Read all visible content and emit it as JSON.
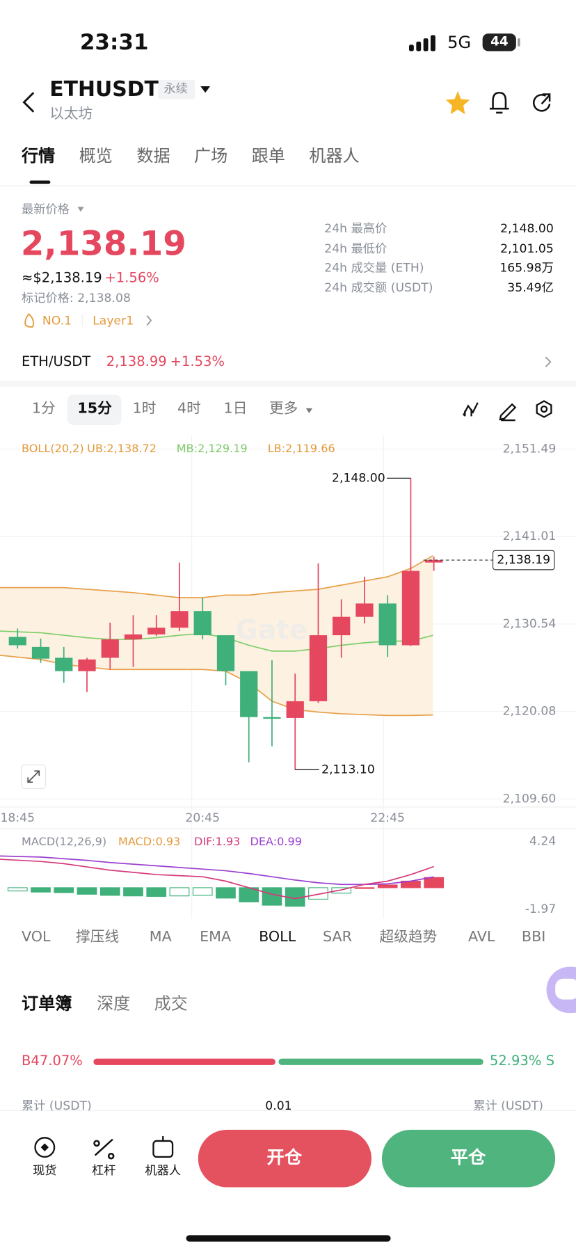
{
  "status": {
    "time": "23:31",
    "network": "5G",
    "battery": "44"
  },
  "header": {
    "symbol": "ETHUSDT",
    "tag": "永续",
    "subtitle": "以太坊"
  },
  "tabs": [
    "行情",
    "概览",
    "数据",
    "广场",
    "跟单",
    "机器人"
  ],
  "price": {
    "label": "最新价格",
    "last": "2,138.19",
    "usd": "≈$2,138.19",
    "change": "+1.56%",
    "mark": "标记价格: 2,138.08",
    "tags": [
      "NO.1",
      "Layer1"
    ]
  },
  "stats": [
    [
      "24h 最高价",
      "2,148.00"
    ],
    [
      "24h 最低价",
      "2,101.05"
    ],
    [
      "24h 成交量 (ETH)",
      "165.98万"
    ],
    [
      "24h 成交额 (USDT)",
      "35.49亿"
    ]
  ],
  "spot": {
    "pair": "ETH/USDT",
    "price": "2,138.99",
    "change": "+1.53%"
  },
  "intervals": [
    "1分",
    "15分",
    "1时",
    "4时",
    "1日",
    "更多"
  ],
  "kline": {
    "type": "candlestick",
    "indicator": "BOLL(20,2)",
    "ub": "UB:2,138.72",
    "mb": "MB:2,129.19",
    "lb": "LB:2,119.66",
    "watermark": "Gate",
    "ylim": [
      2109.6,
      2151.49
    ],
    "yticks": [
      {
        "value": 2151.49,
        "label": "2,151.49"
      },
      {
        "value": 2141.01,
        "label": "2,141.01"
      },
      {
        "value": 2130.54,
        "label": "2,130.54"
      },
      {
        "value": 2120.08,
        "label": "2,120.08"
      },
      {
        "value": 2109.6,
        "label": "2,109.60"
      }
    ],
    "time_labels": [
      "18:45",
      "20:45",
      "22:45"
    ],
    "high_label": "2,148.00",
    "low_label": "2,113.10",
    "last_label": "2,138.19",
    "last": 2138.19,
    "candles": [
      {
        "open": 2129.0,
        "high": 2130.0,
        "low": 2127.6,
        "close": 2128.0
      },
      {
        "open": 2127.8,
        "high": 2128.8,
        "low": 2125.9,
        "close": 2126.4
      },
      {
        "open": 2126.5,
        "high": 2127.8,
        "low": 2123.5,
        "close": 2124.9
      },
      {
        "open": 2124.9,
        "high": 2126.5,
        "low": 2122.4,
        "close": 2126.3
      },
      {
        "open": 2126.5,
        "high": 2130.7,
        "low": 2125.1,
        "close": 2128.7
      },
      {
        "open": 2128.7,
        "high": 2131.6,
        "low": 2125.4,
        "close": 2129.3
      },
      {
        "open": 2129.3,
        "high": 2131.6,
        "low": 2129.1,
        "close": 2130.1
      },
      {
        "open": 2130.1,
        "high": 2137.9,
        "low": 2129.7,
        "close": 2132.1
      },
      {
        "open": 2132.1,
        "high": 2133.7,
        "low": 2128.7,
        "close": 2129.2
      },
      {
        "open": 2129.2,
        "high": 2129.2,
        "low": 2123.2,
        "close": 2124.9
      },
      {
        "open": 2124.9,
        "high": 2124.9,
        "low": 2114.0,
        "close": 2119.4
      },
      {
        "open": 2119.4,
        "high": 2126.2,
        "low": 2115.9,
        "close": 2119.2
      },
      {
        "open": 2119.3,
        "high": 2124.6,
        "low": 2113.1,
        "close": 2121.3
      },
      {
        "open": 2121.3,
        "high": 2137.8,
        "low": 2121.1,
        "close": 2129.2
      },
      {
        "open": 2129.2,
        "high": 2133.5,
        "low": 2126.5,
        "close": 2131.4
      },
      {
        "open": 2131.4,
        "high": 2136.2,
        "low": 2130.6,
        "close": 2133.0
      },
      {
        "open": 2133.0,
        "high": 2134.0,
        "low": 2126.6,
        "close": 2128.0
      },
      {
        "open": 2128.0,
        "high": 2148.0,
        "low": 2127.9,
        "close": 2136.9
      },
      {
        "open": 2137.9,
        "high": 2138.6,
        "low": 2136.9,
        "close": 2138.19
      }
    ],
    "boll": {
      "upper": [
        2134.9,
        2134.9,
        2134.9,
        2134.7,
        2134.5,
        2134.3,
        2134.0,
        2133.7,
        2133.7,
        2134.0,
        2134.0,
        2134.3,
        2134.5,
        2134.7,
        2135.2,
        2135.7,
        2136.2,
        2137.2,
        2138.72
      ],
      "middle": [
        2129.7,
        2129.5,
        2129.2,
        2128.9,
        2128.7,
        2128.7,
        2128.9,
        2129.2,
        2129.4,
        2128.9,
        2128.0,
        2127.3,
        2127.3,
        2127.6,
        2128.0,
        2128.3,
        2128.5,
        2128.5,
        2129.19
      ],
      "lower": [
        2126.8,
        2126.3,
        2125.7,
        2125.4,
        2125.1,
        2125.1,
        2125.1,
        2125.1,
        2125.1,
        2124.9,
        2123.5,
        2121.3,
        2120.3,
        2120.0,
        2119.8,
        2119.7,
        2119.6,
        2119.6,
        2119.66
      ]
    }
  },
  "macd": {
    "title": "MACD(12,26,9)",
    "macd": "MACD:0.93",
    "dif_label": "DIF:1.93",
    "dea_label": "DEA:0.99",
    "ylim": [
      -1.97,
      4.24
    ],
    "yticks": [
      4.24,
      -1.97
    ],
    "dif": [
      2.6,
      2.4,
      2.2,
      1.9,
      1.6,
      1.4,
      1.2,
      1.1,
      1.0,
      0.6,
      0.0,
      -0.6,
      -1.0,
      -0.6,
      -0.2,
      0.3,
      0.6,
      1.2,
      1.93
    ],
    "dea": [
      2.9,
      2.8,
      2.65,
      2.5,
      2.3,
      2.15,
      2.0,
      1.85,
      1.7,
      1.55,
      1.3,
      1.0,
      0.7,
      0.45,
      0.3,
      0.3,
      0.35,
      0.6,
      0.99
    ],
    "hist": [
      -0.3,
      -0.4,
      -0.45,
      -0.6,
      -0.7,
      -0.75,
      -0.8,
      -0.75,
      -0.7,
      -0.95,
      -1.3,
      -1.6,
      -1.7,
      -1.05,
      -0.5,
      0.0,
      0.25,
      0.6,
      0.93
    ]
  },
  "indicators": [
    "VOL",
    "撑压线",
    "MA",
    "EMA",
    "BOLL",
    "SAR",
    "超级趋势",
    "AVL",
    "BBI"
  ],
  "orderbook": {
    "tabs": [
      "订单簿",
      "深度",
      "成交"
    ],
    "buy": {
      "value": 47.07,
      "label": "B47.07%"
    },
    "sell": {
      "value": 52.93,
      "label": "52.93% S"
    },
    "columns": [
      "累计 (USDT)",
      "0.01",
      "累计 (USDT)"
    ]
  },
  "nav": [
    "现货",
    "杠杆",
    "机器人"
  ],
  "buttons": [
    "开仓",
    "平仓"
  ]
}
